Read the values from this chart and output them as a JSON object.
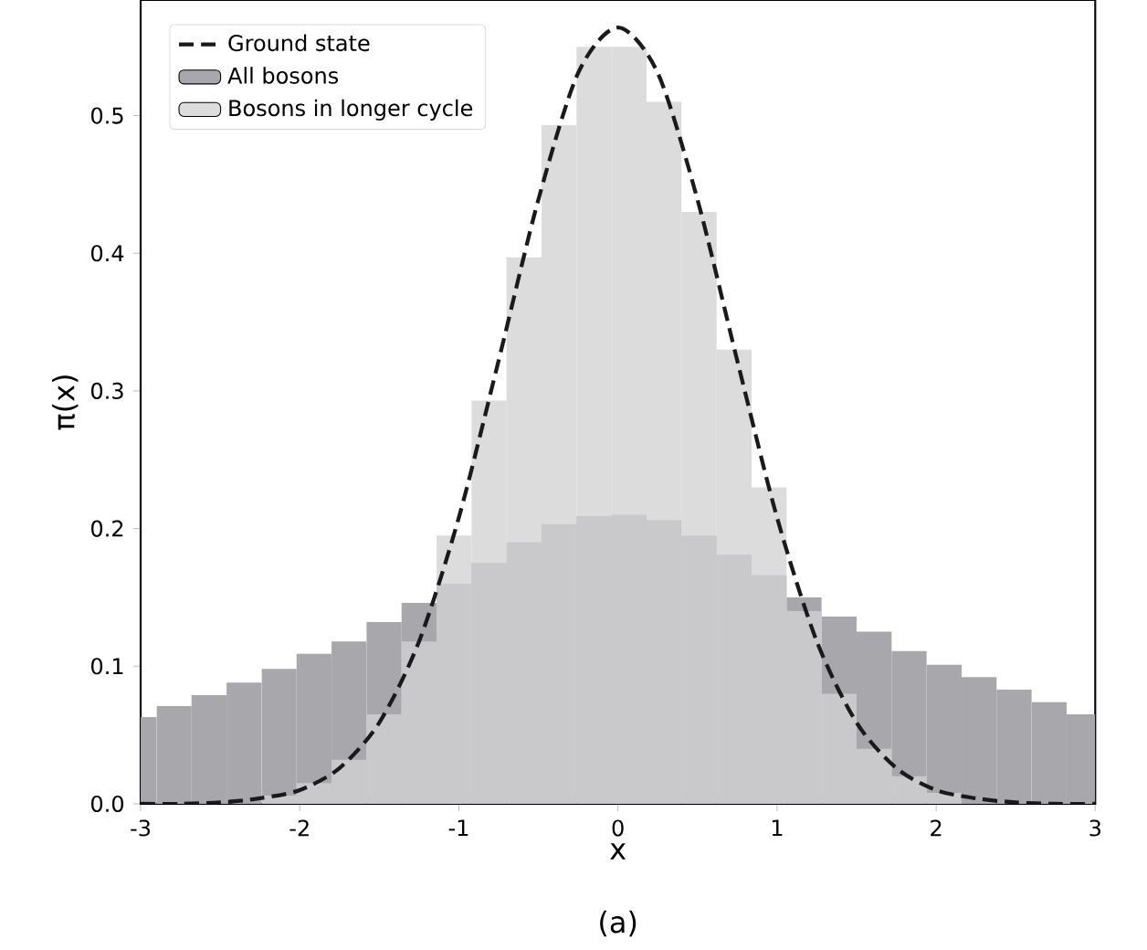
{
  "chart_data": {
    "type": "histogram",
    "xlabel": "x",
    "ylabel": "π(x)",
    "annotations": [
      "(a)"
    ],
    "bins": [
      -3,
      -2.9,
      -2.68,
      -2.46,
      -2.24,
      -2.02,
      -1.8,
      -1.58,
      -1.36,
      -1.14,
      -0.92,
      -0.7,
      -0.48,
      -0.26,
      -0.04,
      0.18,
      0.4,
      0.62,
      0.84,
      1.06,
      1.28,
      1.5,
      1.72,
      1.94,
      2.16,
      2.38,
      2.6,
      2.82,
      3
    ],
    "series": [
      {
        "name": "Ground state",
        "type": "line",
        "color": "#1a1a1a",
        "line_style": "dashed",
        "x": [
          -3,
          -2.75,
          -2.5,
          -2.25,
          -2,
          -1.75,
          -1.5,
          -1.25,
          -1,
          -0.75,
          -0.5,
          -0.25,
          0,
          0.25,
          0.5,
          0.75,
          1,
          1.25,
          1.5,
          1.75,
          2,
          2.25,
          2.5,
          2.75,
          3
        ],
        "values": [
          0.0,
          0.0,
          0.001,
          0.004,
          0.01,
          0.026,
          0.059,
          0.118,
          0.208,
          0.322,
          0.439,
          0.531,
          0.564,
          0.531,
          0.439,
          0.322,
          0.208,
          0.118,
          0.059,
          0.026,
          0.01,
          0.004,
          0.001,
          0.0,
          0.0
        ]
      },
      {
        "name": "All bosons",
        "color": "#a8a8ac",
        "values": [
          0.063,
          0.071,
          0.079,
          0.088,
          0.098,
          0.109,
          0.118,
          0.132,
          0.146,
          0.16,
          0.175,
          0.19,
          0.203,
          0.209,
          0.21,
          0.206,
          0.195,
          0.181,
          0.166,
          0.15,
          0.136,
          0.125,
          0.111,
          0.101,
          0.092,
          0.083,
          0.074,
          0.065
        ]
      },
      {
        "name": "Bosons in longer cycle",
        "color": "#d2d2d4",
        "values": [
          null,
          null,
          null,
          null,
          0.006,
          0.015,
          0.032,
          0.065,
          0.118,
          0.195,
          0.293,
          0.397,
          0.493,
          0.55,
          0.55,
          0.51,
          0.43,
          0.33,
          0.23,
          0.14,
          0.08,
          0.04,
          0.02,
          0.008,
          null,
          null,
          null,
          null
        ]
      }
    ],
    "xlim": [
      -3,
      3
    ],
    "ylim": [
      0,
      0.584
    ],
    "xticks": [
      -3,
      -2,
      -1,
      0,
      1,
      2,
      3
    ],
    "yticks": [
      {
        "value": 0,
        "label": "0.0"
      },
      0.1,
      0.2,
      0.3,
      0.4,
      0.5
    ],
    "legend": "top left"
  }
}
